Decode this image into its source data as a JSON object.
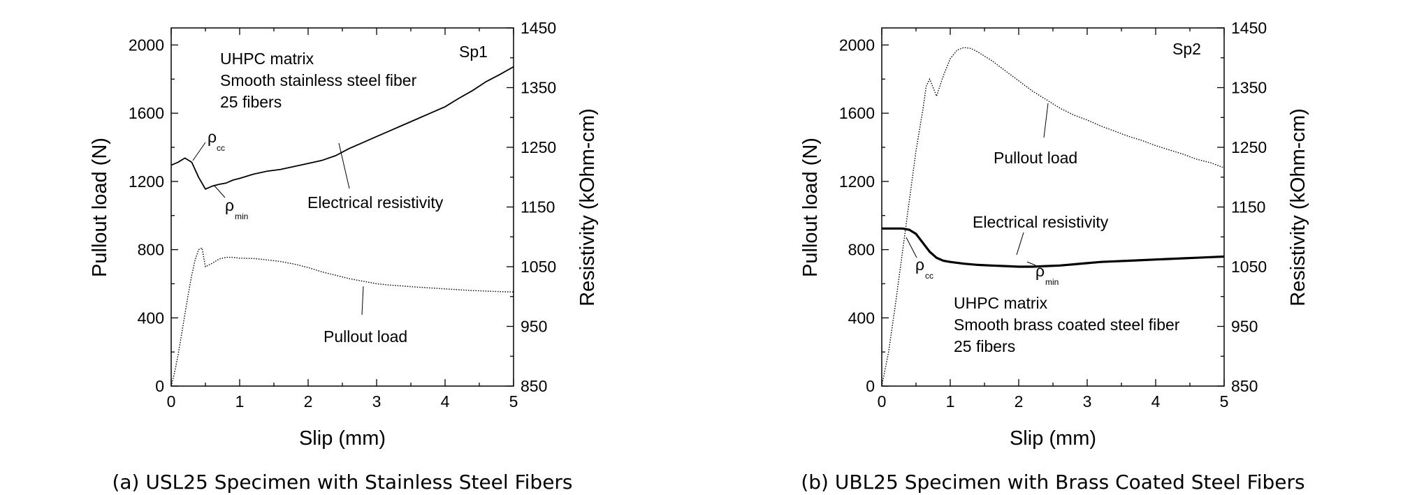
{
  "chart_data": [
    {
      "type": "line",
      "panel": "a",
      "caption": "(a) USL25 Specimen with Stainless Steel Fibers",
      "xlabel": "Slip (mm)",
      "ylabel": "Pullout load (N)",
      "y2label": "Resistivity (kOhm-cm)",
      "xlim": [
        0,
        5
      ],
      "ylim": [
        0,
        2100
      ],
      "y2lim": [
        850,
        1450
      ],
      "xticks": [
        "0",
        "1",
        "2",
        "3",
        "4",
        "5"
      ],
      "yticks": [
        "0",
        "400",
        "800",
        "1200",
        "1600",
        "2000"
      ],
      "y2ticks": [
        "850",
        "950",
        "1050",
        "1150",
        "1250",
        "1350",
        "1450"
      ],
      "grid": false,
      "specimen": "Sp1",
      "info": [
        "UHPC matrix",
        "Smooth stainless steel fiber",
        "25 fibers"
      ],
      "annotations": {
        "resistivity": "Electrical resistivity",
        "pullout": "Pullout load",
        "rho": "ρ",
        "cc": "cc",
        "min": "min"
      },
      "series": [
        {
          "axis": "left",
          "x": [
            0,
            0.05,
            0.1,
            0.15,
            0.2,
            0.25,
            0.3,
            0.35,
            0.4,
            0.45,
            0.5,
            0.6,
            0.7,
            0.8,
            0.9,
            1.0,
            1.2,
            1.4,
            1.6,
            1.8,
            2.0,
            2.2,
            2.4,
            2.6,
            2.8,
            3.0,
            3.2,
            3.4,
            3.6,
            3.8,
            4.0,
            4.2,
            4.4,
            4.6,
            4.8,
            5.0
          ],
          "values": [
            0,
            80,
            180,
            300,
            420,
            540,
            650,
            740,
            800,
            810,
            700,
            720,
            745,
            755,
            755,
            750,
            748,
            740,
            730,
            715,
            695,
            670,
            650,
            630,
            615,
            600,
            592,
            586,
            580,
            575,
            570,
            565,
            560,
            557,
            554,
            552
          ]
        },
        {
          "axis": "right",
          "x": [
            0,
            0.1,
            0.2,
            0.3,
            0.4,
            0.5,
            0.6,
            0.7,
            0.8,
            0.9,
            1.0,
            1.2,
            1.4,
            1.6,
            1.8,
            2.0,
            2.2,
            2.4,
            2.6,
            2.8,
            3.0,
            3.2,
            3.4,
            3.6,
            3.8,
            4.0,
            4.2,
            4.4,
            4.6,
            4.8,
            5.0
          ],
          "values": [
            1220,
            1225,
            1232,
            1225,
            1200,
            1180,
            1185,
            1188,
            1190,
            1195,
            1198,
            1205,
            1210,
            1213,
            1218,
            1223,
            1228,
            1236,
            1248,
            1258,
            1268,
            1278,
            1288,
            1298,
            1308,
            1318,
            1332,
            1345,
            1360,
            1372,
            1385
          ]
        }
      ]
    },
    {
      "type": "line",
      "panel": "b",
      "caption": "(b) UBL25 Specimen with Brass Coated Steel Fibers",
      "xlabel": "Slip (mm)",
      "ylabel": "Pullout load (N)",
      "y2label": "Resistivity (kOhm-cm)",
      "xlim": [
        0,
        5
      ],
      "ylim": [
        0,
        2100
      ],
      "y2lim": [
        850,
        1450
      ],
      "xticks": [
        "0",
        "1",
        "2",
        "3",
        "4",
        "5"
      ],
      "yticks": [
        "0",
        "400",
        "800",
        "1200",
        "1600",
        "2000"
      ],
      "y2ticks": [
        "850",
        "950",
        "1050",
        "1150",
        "1250",
        "1350",
        "1450"
      ],
      "grid": false,
      "specimen": "Sp2",
      "info": [
        "UHPC matrix",
        "Smooth brass coated steel fiber",
        "25 fibers"
      ],
      "annotations": {
        "resistivity": "Electrical resistivity",
        "pullout": "Pullout load",
        "rho": "ρ",
        "cc": "cc",
        "min": "min"
      },
      "series": [
        {
          "axis": "left",
          "x": [
            0,
            0.1,
            0.2,
            0.3,
            0.4,
            0.5,
            0.6,
            0.65,
            0.7,
            0.75,
            0.8,
            0.9,
            1.0,
            1.1,
            1.2,
            1.3,
            1.4,
            1.6,
            1.8,
            2.0,
            2.2,
            2.4,
            2.6,
            2.8,
            3.0,
            3.2,
            3.4,
            3.6,
            3.8,
            4.0,
            4.2,
            4.4,
            4.6,
            4.8,
            5.0
          ],
          "values": [
            0,
            200,
            480,
            780,
            1080,
            1380,
            1620,
            1760,
            1800,
            1750,
            1700,
            1820,
            1920,
            1970,
            1985,
            1980,
            1960,
            1910,
            1850,
            1790,
            1730,
            1680,
            1630,
            1590,
            1560,
            1525,
            1495,
            1465,
            1440,
            1410,
            1385,
            1360,
            1330,
            1310,
            1280
          ]
        },
        {
          "axis": "right",
          "x": [
            0,
            0.1,
            0.2,
            0.3,
            0.4,
            0.5,
            0.6,
            0.7,
            0.8,
            0.9,
            1.0,
            1.2,
            1.4,
            1.6,
            1.8,
            2.0,
            2.2,
            2.4,
            2.6,
            2.8,
            3.0,
            3.2,
            3.4,
            3.6,
            3.8,
            4.0,
            4.2,
            4.4,
            4.6,
            4.8,
            5.0
          ],
          "values": [
            1114,
            1114,
            1114,
            1114,
            1112,
            1105,
            1090,
            1075,
            1065,
            1060,
            1058,
            1055,
            1053,
            1052,
            1051,
            1050,
            1050,
            1051,
            1052,
            1054,
            1056,
            1058,
            1059,
            1060,
            1061,
            1062,
            1063,
            1064,
            1065,
            1066,
            1067
          ]
        }
      ]
    }
  ]
}
